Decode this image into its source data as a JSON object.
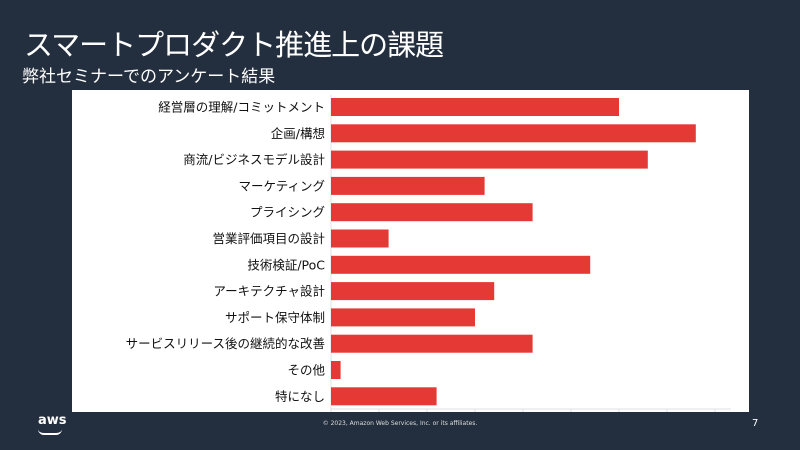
{
  "slide": {
    "title": "スマートプロダクト推進上の課題",
    "subtitle": "弊社セミナーでのアンケート結果",
    "footer": "© 2023, Amazon Web Services, Inc. or its affiliates.",
    "page_number": "7",
    "logo": "aws"
  },
  "colors": {
    "bar": "#e53935",
    "background": "#232f3e"
  },
  "chart_data": {
    "type": "bar",
    "orientation": "horizontal",
    "title": "",
    "xlabel": "",
    "ylabel": "",
    "categories": [
      "経営層の理解/コミットメント",
      "企画/構想",
      "商流/ビジネスモデル設計",
      "マーケティング",
      "プライシング",
      "営業評価項目の設計",
      "技術検証/PoC",
      "アーキテクチャ設計",
      "サポート保守体制",
      "サービスリリース後の継続的な改善",
      "その他",
      "特になし"
    ],
    "values": [
      30,
      38,
      33,
      16,
      21,
      6,
      27,
      17,
      15,
      21,
      1,
      11
    ],
    "xlim": [
      0,
      42
    ],
    "xtick_step": 5,
    "grid": false
  }
}
